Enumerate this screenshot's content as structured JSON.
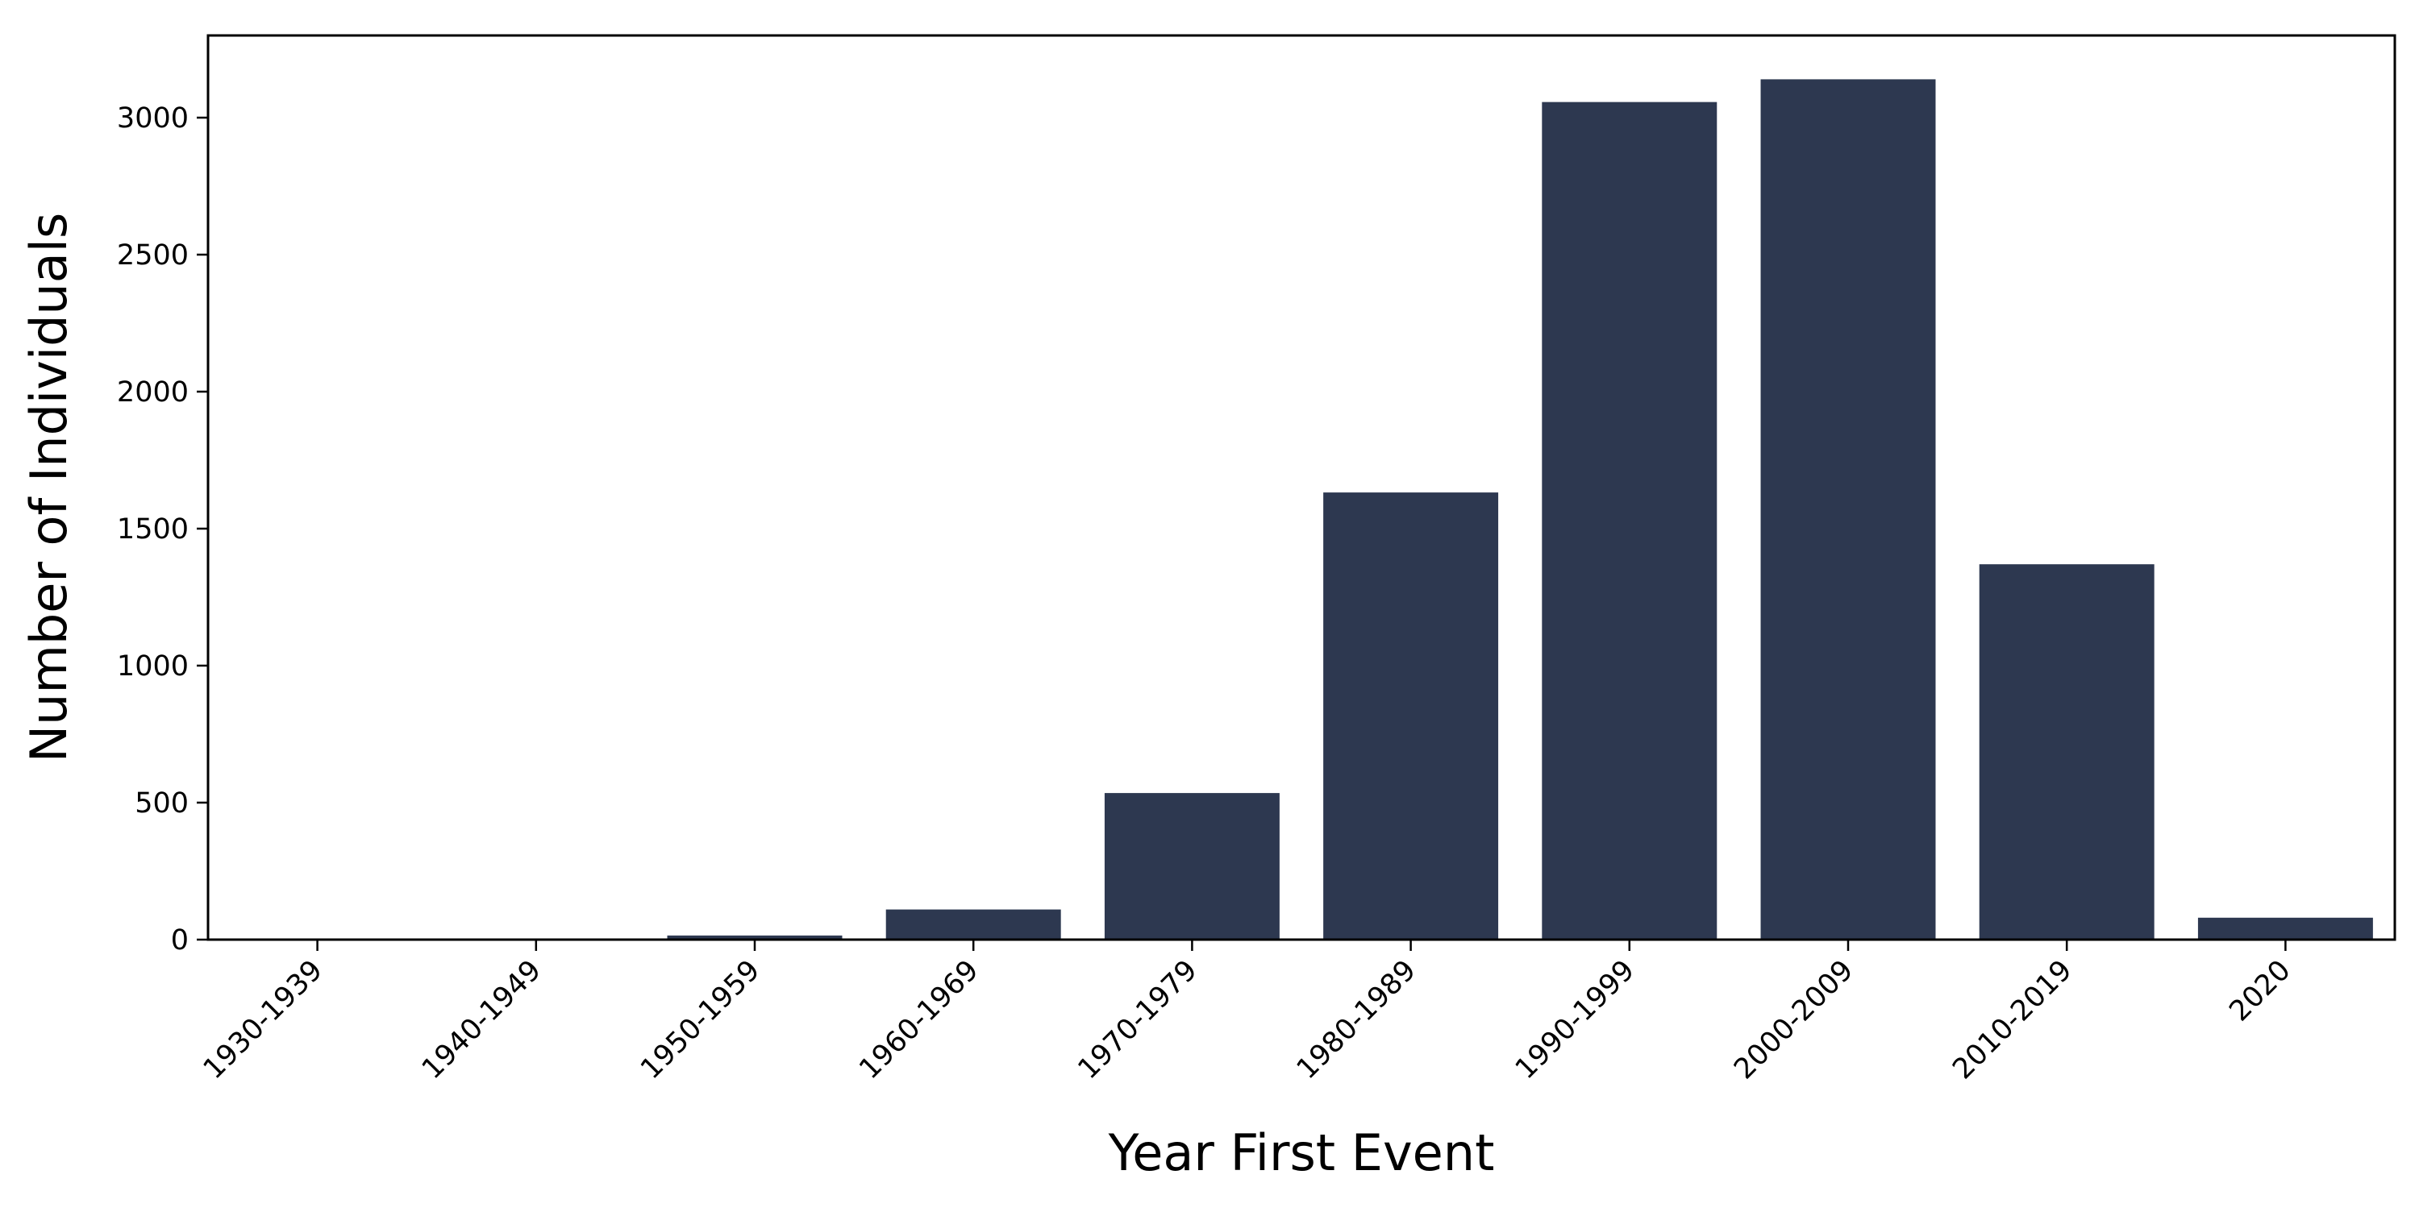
{
  "chart_data": {
    "type": "bar",
    "title": "",
    "xlabel": "Year First Event",
    "ylabel": "Number of Individuals",
    "categories": [
      "1930-1939",
      "1940-1949",
      "1950-1959",
      "1960-1969",
      "1970-1979",
      "1980-1989",
      "1990-1999",
      "2000-2009",
      "2010-2019",
      "2020"
    ],
    "values": [
      2,
      3,
      15,
      110,
      535,
      1632,
      3057,
      3140,
      1370,
      80
    ],
    "ylim": [
      0,
      3300
    ],
    "yticks": [
      "0",
      "500",
      "1000",
      "1500",
      "2000",
      "2500",
      "3000"
    ],
    "grid": false,
    "legend": "none",
    "bar_color": "#2d3850"
  }
}
